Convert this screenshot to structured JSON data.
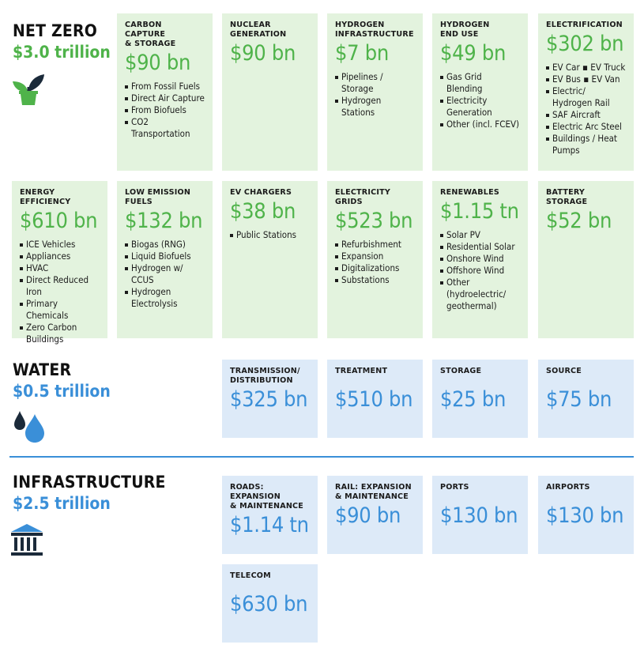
{
  "sections": {
    "net_zero": {
      "title": "NET ZERO",
      "total": "$3.0 trillion"
    },
    "water": {
      "title": "WATER",
      "total": "$0.5 trillion"
    },
    "infrastructure": {
      "title": "INFRASTRUCTURE",
      "total": "$2.5 trillion"
    }
  },
  "colors": {
    "green": "#4fb34a",
    "blue": "#3a8fd8",
    "green_card": "#e3f3de",
    "blue_card": "#ddeaf8"
  },
  "icons": {
    "net_zero": "plant-icon",
    "water": "water-drops-icon",
    "infrastructure": "bank-building-icon"
  },
  "cards": {
    "carbon_capture": {
      "title": "CARBON CAPTURE\n& STORAGE",
      "value": "$90 bn",
      "items": [
        "From Fossil Fuels",
        "Direct Air Capture",
        "From Biofuels",
        "CO2 Transportation"
      ]
    },
    "nuclear": {
      "title": "NUCLEAR\nGENERATION",
      "value": "$90 bn"
    },
    "hydrogen_infra": {
      "title": "HYDROGEN\nINFRASTRUCTURE",
      "value": "$7 bn",
      "items": [
        "Pipelines / Storage",
        "Hydrogen Stations"
      ]
    },
    "hydrogen_end_use": {
      "title": "HYDROGEN\nEND USE",
      "value": "$49 bn",
      "items": [
        "Gas Grid Blending",
        "Electricity\nGeneration",
        "Other (incl. FCEV)"
      ]
    },
    "electrification": {
      "title": "ELECTRIFICATION",
      "value": "$302 bn",
      "items": [
        "EV Car ▪ EV Truck",
        "EV Bus ▪ EV Van",
        "Electric/\nHydrogen Rail",
        "SAF Aircraft",
        "Electric Arc Steel",
        "Buildings / Heat\nPumps"
      ]
    },
    "energy_efficiency": {
      "title": "ENERGY EFFICIENCY",
      "value": "$610 bn",
      "items": [
        "ICE Vehicles",
        "Appliances",
        "HVAC",
        "Direct Reduced Iron",
        "Primary Chemicals",
        "Zero Carbon\nBuildings"
      ]
    },
    "low_emission_fuels": {
      "title": "LOW EMISSION\nFUELS",
      "value": "$132 bn",
      "items": [
        "Biogas (RNG)",
        "Liquid Biofuels",
        "Hydrogen w/ CCUS",
        "Hydrogen\nElectrolysis"
      ]
    },
    "ev_chargers": {
      "title": "EV CHARGERS",
      "value": "$38 bn",
      "items": [
        "Public Stations"
      ]
    },
    "electricity_grids": {
      "title": "ELECTRICITY GRIDS",
      "value": "$523 bn",
      "items": [
        "Refurbishment",
        "Expansion",
        "Digitalizations",
        "Substations"
      ]
    },
    "renewables": {
      "title": "RENEWABLES",
      "value": "$1.15 tn",
      "items": [
        "Solar PV",
        "Residential Solar",
        "Onshore Wind",
        "Offshore Wind",
        "Other\n(hydroelectric/\ngeothermal)"
      ]
    },
    "battery_storage": {
      "title": "BATTERY STORAGE",
      "value": "$52 bn"
    },
    "transmission": {
      "title": "TRANSMISSION/\nDISTRIBUTION",
      "value": "$325 bn"
    },
    "treatment": {
      "title": "TREATMENT",
      "value": "$510 bn"
    },
    "storage": {
      "title": "STORAGE",
      "value": "$25 bn"
    },
    "source": {
      "title": "SOURCE",
      "value": "$75 bn"
    },
    "roads": {
      "title": "ROADS: EXPANSION\n& MAINTENANCE",
      "value": "$1.14 tn"
    },
    "rail": {
      "title": "RAIL: EXPANSION\n& MAINTENANCE",
      "value": "$90 bn"
    },
    "ports": {
      "title": "PORTS",
      "value": "$130 bn"
    },
    "airports": {
      "title": "AIRPORTS",
      "value": "$130 bn"
    },
    "telecom": {
      "title": "TELECOM",
      "value": "$630 bn"
    }
  }
}
